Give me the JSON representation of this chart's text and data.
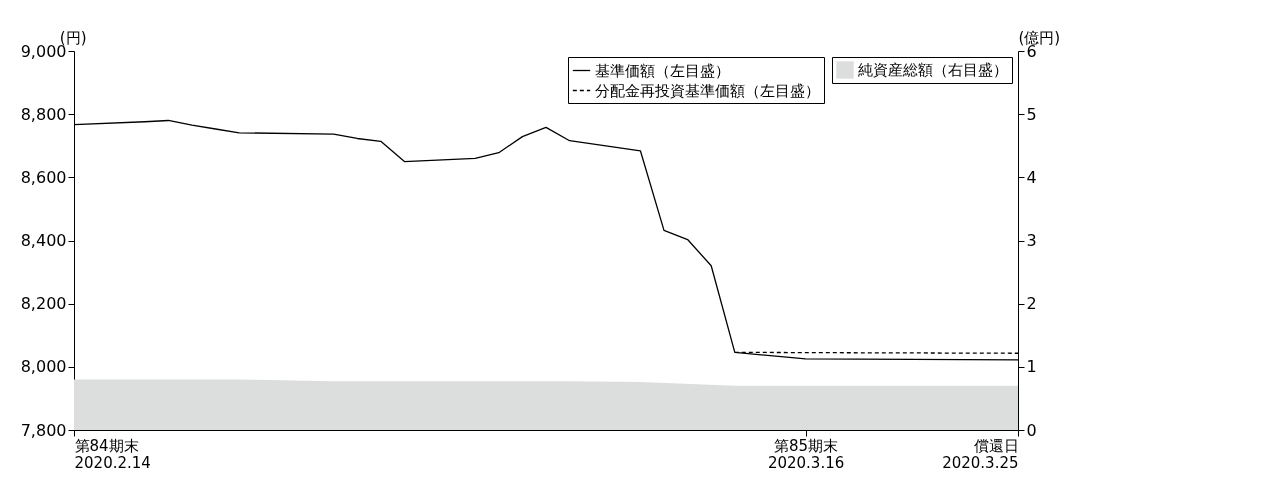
{
  "chart_data": {
    "type": "line",
    "ylabel": "(円)",
    "y2label": "(億円)",
    "xlim": [
      "2020-02-14",
      "2020-03-25"
    ],
    "xticks": [
      {
        "value": "2020-02-14",
        "label": "第84期末\n2020.2.14"
      },
      {
        "value": "2020-03-16",
        "label": "第85期末\n2020.3.16"
      },
      {
        "value": "2020-03-25",
        "label": "償還日\n2020.3.25"
      }
    ],
    "ylim": [
      7800,
      9000
    ],
    "yticks": [
      {
        "value": 7800,
        "label": "7,800"
      },
      {
        "value": 8000,
        "label": "8,000"
      },
      {
        "value": 8200,
        "label": "8,200"
      },
      {
        "value": 8400,
        "label": "8,400"
      },
      {
        "value": 8600,
        "label": "8,600"
      },
      {
        "value": 8800,
        "label": "8,800"
      },
      {
        "value": 9000,
        "label": "9,000"
      }
    ],
    "y2lim": [
      0,
      6
    ],
    "y2ticks": [
      0,
      1,
      2,
      3,
      4,
      5,
      6
    ],
    "grid": false,
    "legend": "top right",
    "series": [
      {
        "name": "純資産総額（右目盛）",
        "type": "area",
        "axis": "y2",
        "color": "#dcdddd",
        "x": [
          "2020-02-14",
          "2020-02-21",
          "2020-02-25",
          "2020-03-06",
          "2020-03-09",
          "2020-03-13",
          "2020-03-25"
        ],
        "values": [
          0.8,
          0.8,
          0.77,
          0.77,
          0.76,
          0.7,
          0.7
        ]
      },
      {
        "name": "基準価額（左目盛）",
        "line_style": "solid",
        "color": "#000000",
        "x": [
          "2020-02-14",
          "2020-02-17",
          "2020-02-18",
          "2020-02-19",
          "2020-02-20",
          "2020-02-21",
          "2020-02-25",
          "2020-02-26",
          "2020-02-27",
          "2020-02-28",
          "2020-03-02",
          "2020-03-03",
          "2020-03-04",
          "2020-03-05",
          "2020-03-06",
          "2020-03-09",
          "2020-03-10",
          "2020-03-11",
          "2020-03-12",
          "2020-03-13",
          "2020-03-16",
          "2020-03-25"
        ],
        "values": [
          8767,
          8776,
          8780,
          8765,
          8753,
          8741,
          8737,
          8723,
          8714,
          8650,
          8660,
          8678,
          8729,
          8758,
          8716,
          8684,
          8432,
          8403,
          8320,
          8046,
          8025,
          8022
        ]
      },
      {
        "name": "分配金再投資基準価額（左目盛）",
        "line_style": "dashed",
        "color": "#000000",
        "x": [
          "2020-03-13",
          "2020-03-16",
          "2020-03-25"
        ],
        "values": [
          8046,
          8045,
          8043
        ]
      }
    ]
  }
}
